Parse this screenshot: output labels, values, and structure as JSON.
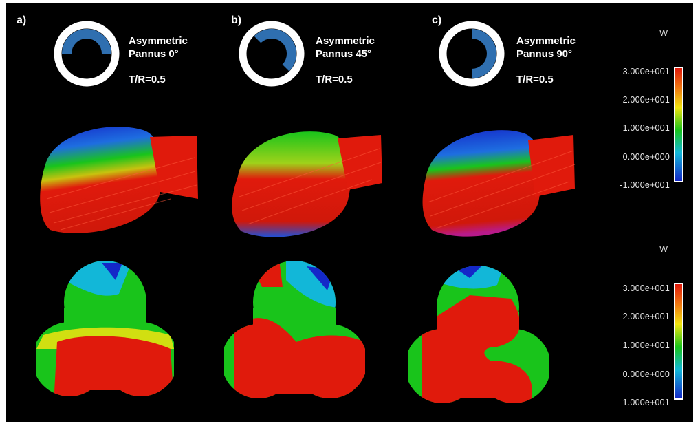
{
  "panels": [
    {
      "letter": "a)",
      "caption_line1": "Asymmetric",
      "caption_line2": "Pannus 0°",
      "ratio": "T/R=0.5"
    },
    {
      "letter": "b)",
      "caption_line1": "Asymmetric",
      "caption_line2": "Pannus 45°",
      "ratio": "T/R=0.5"
    },
    {
      "letter": "c)",
      "caption_line1": "Asymmetric",
      "caption_line2": "Pannus 90°",
      "ratio": "T/R=0.5"
    }
  ],
  "colorbars": [
    {
      "unit": "W",
      "ticks": [
        "3.000e+001",
        "2.000e+001",
        "1.000e+001",
        "0.000e+000",
        "-1.000e+001"
      ]
    },
    {
      "unit": "W",
      "ticks": [
        "3.000e+001",
        "2.000e+001",
        "1.000e+001",
        "0.000e+000",
        "-1.000e+001"
      ]
    }
  ],
  "colors": {
    "background": "#000000",
    "ring_outer": "#ffffff",
    "pannus": "#2f6fb0",
    "red": "#e01a0c",
    "yellow": "#f2e40f",
    "green": "#19c41b",
    "cyan": "#12b7d8",
    "blue": "#1428c8"
  }
}
